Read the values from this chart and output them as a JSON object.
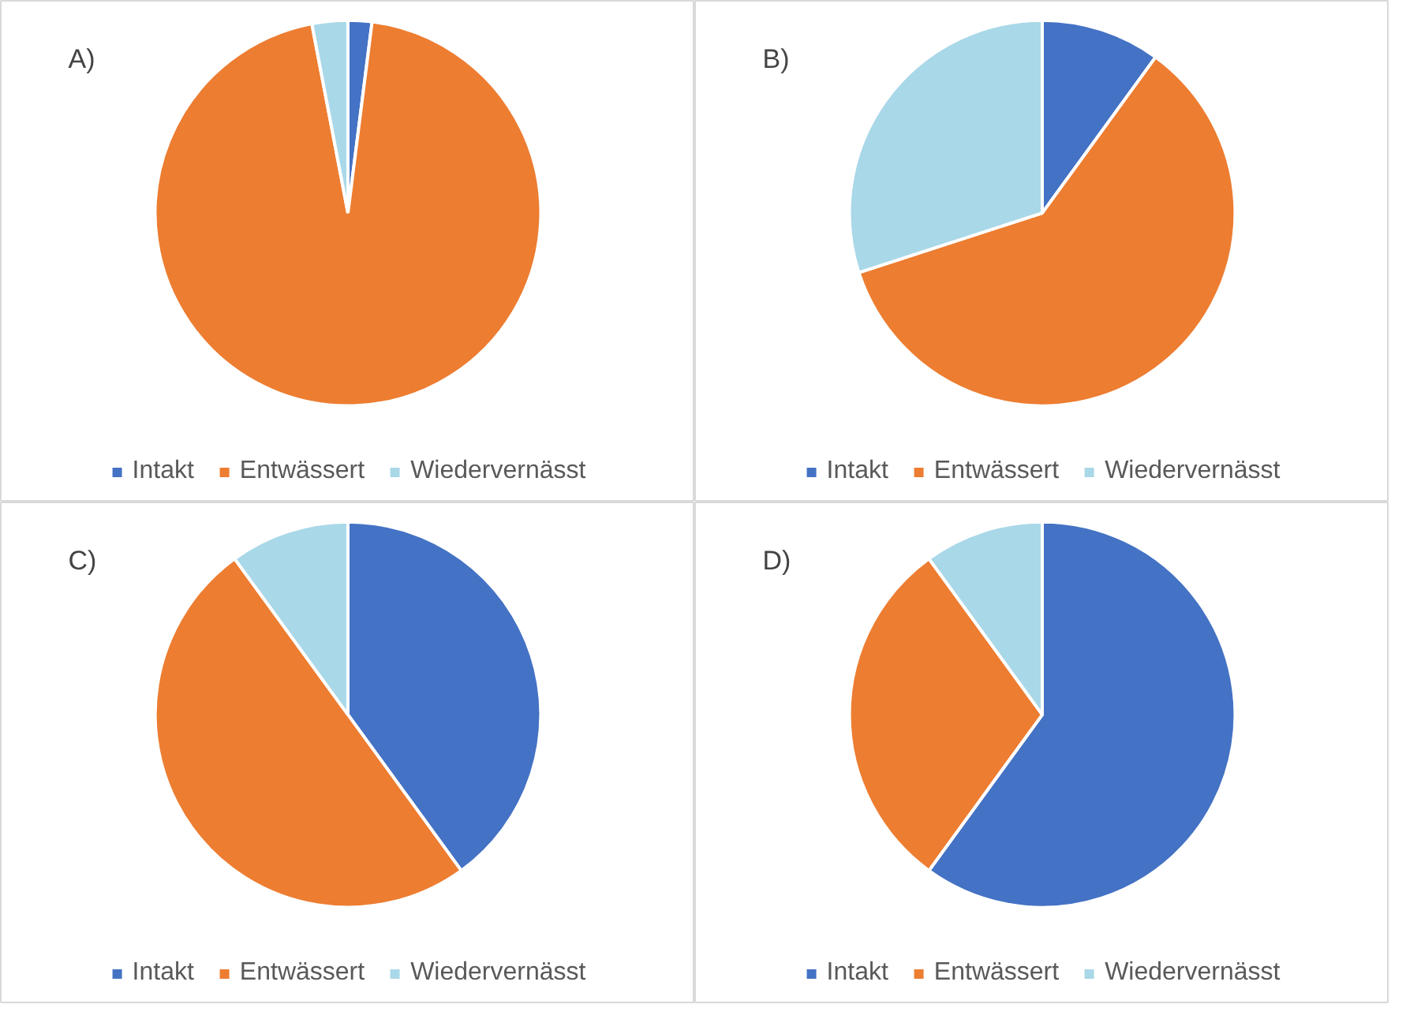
{
  "chart_data": [
    {
      "type": "pie",
      "title": "A)",
      "categories": [
        "Intakt",
        "Entwässert",
        "Wiedervernässt"
      ],
      "values": [
        2,
        95,
        3
      ],
      "colors": [
        "#4472c4",
        "#ed7d31",
        "#a9d8e8"
      ],
      "legend": "bottom"
    },
    {
      "type": "pie",
      "title": "B)",
      "categories": [
        "Intakt",
        "Entwässert",
        "Wiedervernässt"
      ],
      "values": [
        10,
        60,
        30
      ],
      "colors": [
        "#4472c4",
        "#ed7d31",
        "#a9d8e8"
      ],
      "legend": "bottom"
    },
    {
      "type": "pie",
      "title": "C)",
      "categories": [
        "Intakt",
        "Entwässert",
        "Wiedervernässt"
      ],
      "values": [
        40,
        50,
        10
      ],
      "colors": [
        "#4472c4",
        "#ed7d31",
        "#a9d8e8"
      ],
      "legend": "bottom"
    },
    {
      "type": "pie",
      "title": "D)",
      "categories": [
        "Intakt",
        "Entwässert",
        "Wiedervernässt"
      ],
      "values": [
        60,
        30,
        10
      ],
      "colors": [
        "#4472c4",
        "#ed7d31",
        "#a9d8e8"
      ],
      "legend": "bottom"
    }
  ]
}
